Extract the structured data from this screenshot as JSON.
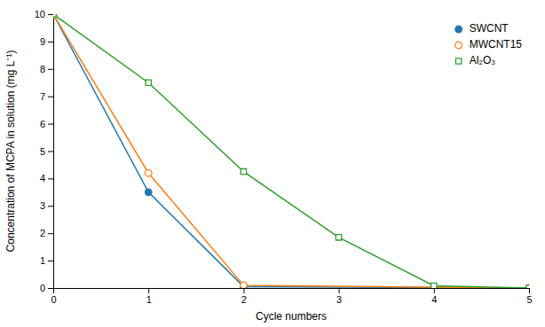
{
  "chart_data": {
    "type": "line",
    "xlabel": "Cycle numbers",
    "ylabel": "Concentration of MCPA in solution (mg L⁻¹)",
    "xlim": [
      0,
      5
    ],
    "ylim": [
      0,
      10
    ],
    "xticks": [
      0,
      1,
      2,
      3,
      4,
      5
    ],
    "yticks": [
      0,
      1,
      2,
      3,
      4,
      5,
      6,
      7,
      8,
      9,
      10
    ],
    "grid": false,
    "legend": "upper right",
    "series": [
      {
        "name": "SWCNT",
        "marker": "circle",
        "x": [
          0,
          1,
          2,
          5
        ],
        "values": [
          10,
          3.5,
          0.05,
          0.0
        ]
      },
      {
        "name": "MWCNT15",
        "marker": "circle-open",
        "x": [
          0,
          1,
          2,
          5
        ],
        "values": [
          10,
          4.2,
          0.1,
          0.0
        ]
      },
      {
        "name": "Al₂O₃",
        "marker": "square-open",
        "x": [
          0,
          1,
          2,
          3,
          4,
          5
        ],
        "values": [
          10,
          7.5,
          4.25,
          1.85,
          0.08,
          0.0
        ]
      }
    ]
  }
}
